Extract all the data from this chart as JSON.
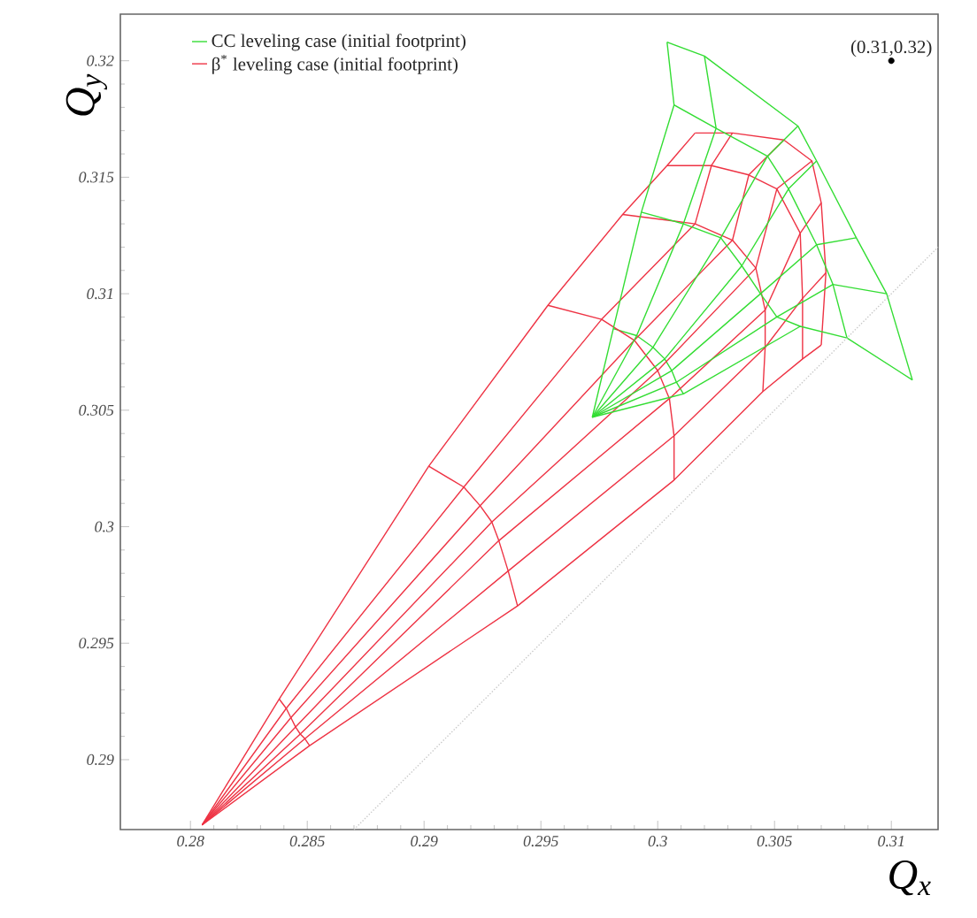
{
  "chart_data": {
    "type": "line",
    "xlabel": "Q$_{x}$",
    "ylabel": "Q$_{y}$",
    "xlim": [
      0.277,
      0.312
    ],
    "ylim": [
      0.287,
      0.322
    ],
    "xticks": [
      0.28,
      0.285,
      0.29,
      0.295,
      0.3,
      0.305,
      0.31
    ],
    "yticks": [
      0.29,
      0.295,
      0.3,
      0.305,
      0.31,
      0.315,
      0.32
    ],
    "legend": "top left",
    "marker": "none",
    "line_style": "solid",
    "annotations": [
      {
        "text": "(0.31,0.32)",
        "x": 0.31,
        "y": 0.32
      }
    ],
    "series": [
      {
        "name": "CC leveling case (initial footprint)",
        "color": "#33dd33",
        "x": [
          0.2981,
          0.2991,
          0.2998,
          0.3003,
          0.3006,
          0.3008,
          0.3011
        ],
        "values": [
          0.3085,
          0.3082,
          0.3077,
          0.3072,
          0.3067,
          0.3062,
          0.3057
        ]
      },
      {
        "name": "β$^{*}$ leveling case (initial footprint)",
        "color": "#ee3344",
        "x": [
          0.2838,
          0.2841,
          0.2843,
          0.2845,
          0.2847,
          0.2849,
          0.2851
        ],
        "values": [
          0.2926,
          0.2922,
          0.2918,
          0.2914,
          0.2911,
          0.2909,
          0.2906
        ]
      },
      {
        "color": "#ee3344",
        "x": [
          0.2902,
          0.2917,
          0.2924,
          0.2929,
          0.2932,
          0.2936,
          0.294
        ],
        "values": [
          0.3026,
          0.3017,
          0.3009,
          0.3002,
          0.2994,
          0.2981,
          0.2966
        ]
      },
      {
        "color": "#ee3344",
        "x": [
          0.2953,
          0.2976,
          0.299,
          0.3,
          0.3005,
          0.3007,
          0.3007
        ],
        "values": [
          0.3095,
          0.3089,
          0.308,
          0.3067,
          0.3055,
          0.3039,
          0.302
        ]
      },
      {
        "color": "#ee3344",
        "x": [
          0.2985,
          0.3016,
          0.3032,
          0.3042,
          0.3046,
          0.3046,
          0.3045
        ],
        "values": [
          0.3134,
          0.313,
          0.3123,
          0.3111,
          0.3093,
          0.3077,
          0.3058
        ]
      },
      {
        "color": "#ee3344",
        "x": [
          0.3004,
          0.3023,
          0.3039,
          0.3051,
          0.3061,
          0.3062,
          0.3062
        ],
        "values": [
          0.3155,
          0.3155,
          0.3151,
          0.3145,
          0.3126,
          0.3098,
          0.3072
        ]
      },
      {
        "color": "#ee3344",
        "x": [
          0.3016,
          0.3032,
          0.3054,
          0.3066,
          0.307,
          0.3072,
          0.307
        ],
        "values": [
          0.3169,
          0.3169,
          0.3166,
          0.3157,
          0.3139,
          0.3109,
          0.3078
        ]
      },
      {
        "color": "#ee3344",
        "x": [
          0.2805,
          0.2838,
          0.2902,
          0.2953,
          0.2985,
          0.3004,
          0.3016
        ],
        "values": [
          0.2872,
          0.2926,
          0.3026,
          0.3095,
          0.3134,
          0.3155,
          0.3169
        ]
      },
      {
        "color": "#ee3344",
        "x": [
          0.2805,
          0.2841,
          0.2917,
          0.2976,
          0.3016,
          0.3023,
          0.3032
        ],
        "values": [
          0.2872,
          0.2922,
          0.3017,
          0.3089,
          0.313,
          0.3155,
          0.3169
        ]
      },
      {
        "color": "#ee3344",
        "x": [
          0.2805,
          0.2843,
          0.2924,
          0.299,
          0.3032,
          0.3039,
          0.3054
        ],
        "values": [
          0.2872,
          0.2918,
          0.3009,
          0.308,
          0.3123,
          0.3151,
          0.3166
        ]
      },
      {
        "color": "#ee3344",
        "x": [
          0.2805,
          0.2845,
          0.2929,
          0.3,
          0.3042,
          0.3051,
          0.3066
        ],
        "values": [
          0.2872,
          0.2914,
          0.3002,
          0.3067,
          0.3111,
          0.3145,
          0.3157
        ]
      },
      {
        "color": "#ee3344",
        "x": [
          0.2805,
          0.2847,
          0.2932,
          0.3005,
          0.3046,
          0.3061,
          0.307
        ],
        "values": [
          0.2872,
          0.2911,
          0.2994,
          0.3055,
          0.3093,
          0.3126,
          0.3139
        ]
      },
      {
        "color": "#ee3344",
        "x": [
          0.2805,
          0.2849,
          0.2936,
          0.3007,
          0.3046,
          0.3062,
          0.3072
        ],
        "values": [
          0.2872,
          0.2909,
          0.2981,
          0.3039,
          0.3077,
          0.3098,
          0.3109
        ]
      },
      {
        "color": "#ee3344",
        "x": [
          0.2805,
          0.2851,
          0.294,
          0.3007,
          0.3045,
          0.3062,
          0.307
        ],
        "values": [
          0.2872,
          0.2906,
          0.2966,
          0.302,
          0.3058,
          0.3072,
          0.3078
        ]
      },
      {
        "color": "#33dd33",
        "x": [
          0.2993,
          0.3011,
          0.3027,
          0.3036,
          0.3044,
          0.3051,
          0.3061
        ],
        "values": [
          0.3135,
          0.313,
          0.3124,
          0.3112,
          0.31,
          0.309,
          0.3086
        ]
      },
      {
        "color": "#33dd33",
        "x": [
          0.3007,
          0.3025,
          0.3047,
          0.3056,
          0.3068,
          0.3075,
          0.3081
        ],
        "values": [
          0.3181,
          0.3171,
          0.3159,
          0.3145,
          0.3121,
          0.3104,
          0.3081
        ]
      },
      {
        "color": "#33dd33",
        "x": [
          0.3004,
          0.302,
          0.306,
          0.3068,
          0.3085,
          0.3098,
          0.3109
        ],
        "values": [
          0.3208,
          0.3202,
          0.3172,
          0.3157,
          0.3124,
          0.31,
          0.3063
        ]
      },
      {
        "color": "#33dd33",
        "x": [
          0.2972,
          0.2981,
          0.2993,
          0.3007,
          0.3004
        ],
        "values": [
          0.3047,
          0.3085,
          0.3135,
          0.3181,
          0.3208
        ]
      },
      {
        "color": "#33dd33",
        "x": [
          0.2972,
          0.2991,
          0.3011,
          0.3025,
          0.302
        ],
        "values": [
          0.3047,
          0.3082,
          0.313,
          0.3171,
          0.3202
        ]
      },
      {
        "color": "#33dd33",
        "x": [
          0.2972,
          0.2998,
          0.3027,
          0.3047,
          0.306
        ],
        "values": [
          0.3047,
          0.3077,
          0.3124,
          0.3159,
          0.3172
        ]
      },
      {
        "color": "#33dd33",
        "x": [
          0.2972,
          0.3003,
          0.3036,
          0.3056,
          0.3068
        ],
        "values": [
          0.3047,
          0.3072,
          0.3112,
          0.3145,
          0.3157
        ]
      },
      {
        "color": "#33dd33",
        "x": [
          0.2972,
          0.3006,
          0.3044,
          0.3068,
          0.3085
        ],
        "values": [
          0.3047,
          0.3067,
          0.31,
          0.3121,
          0.3124
        ]
      },
      {
        "color": "#33dd33",
        "x": [
          0.2972,
          0.3008,
          0.3051,
          0.3075,
          0.3098
        ],
        "values": [
          0.3047,
          0.3062,
          0.309,
          0.3104,
          0.31
        ]
      },
      {
        "color": "#33dd33",
        "x": [
          0.2972,
          0.3011,
          0.3061,
          0.3081,
          0.3109
        ],
        "values": [
          0.3047,
          0.3057,
          0.3086,
          0.3081,
          0.3063
        ]
      },
      {
        "color": "#c8c8c8",
        "line_style": "dotted",
        "x": [
          0.287,
          0.312
        ],
        "values": [
          0.287,
          0.312
        ]
      },
      {
        "type": "scatter",
        "marker": "circle",
        "color": "#000000",
        "x": [
          0.31
        ],
        "values": [
          0.32
        ]
      }
    ]
  }
}
